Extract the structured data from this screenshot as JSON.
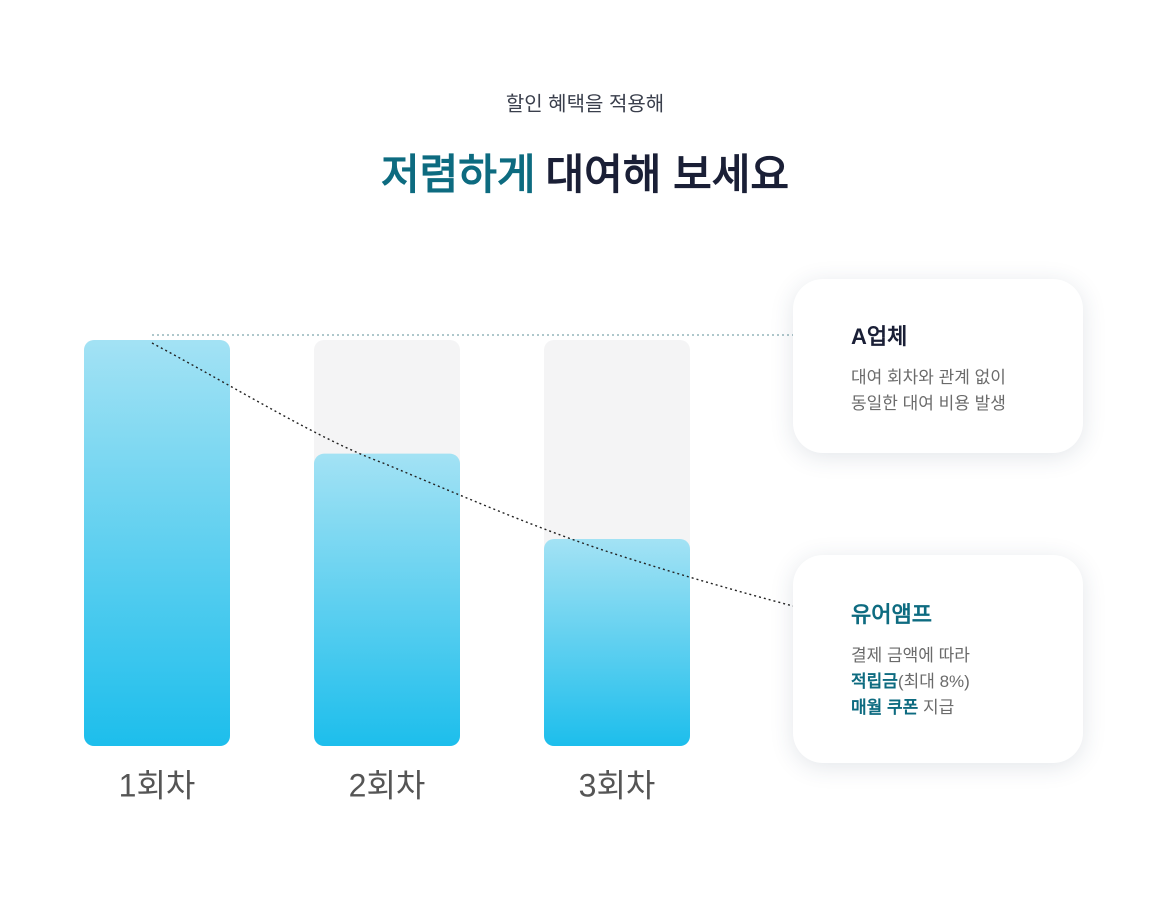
{
  "header": {
    "subtitle": "할인 혜택을 적용해",
    "title_highlight": "저렴하게",
    "title_rest": "대여해 보세요"
  },
  "chart_data": {
    "type": "bar",
    "categories": [
      "1회차",
      "2회차",
      "3회차"
    ],
    "values": [
      100,
      72,
      51
    ],
    "ylim": [
      0,
      100
    ],
    "color_top": "#a3e2f4",
    "color_bottom": "#1dbeec",
    "track_color": "#f4f4f5"
  },
  "cards": [
    {
      "title": "A업체",
      "title_color": "#1a1f36",
      "lines": [
        [
          {
            "text": "대여 회차와 관계 없이"
          }
        ],
        [
          {
            "text": "동일한 대여 비용 발생"
          }
        ]
      ]
    },
    {
      "title": "유어앰프",
      "title_color": "#0d6b80",
      "lines": [
        [
          {
            "text": "결제 금액에 따라"
          }
        ],
        [
          {
            "text": "적립금",
            "strong": true
          },
          {
            "text": "(최대 8%)"
          }
        ],
        [
          {
            "text": "매월 쿠폰",
            "strong": true
          },
          {
            "text": " 지급"
          }
        ]
      ]
    }
  ]
}
